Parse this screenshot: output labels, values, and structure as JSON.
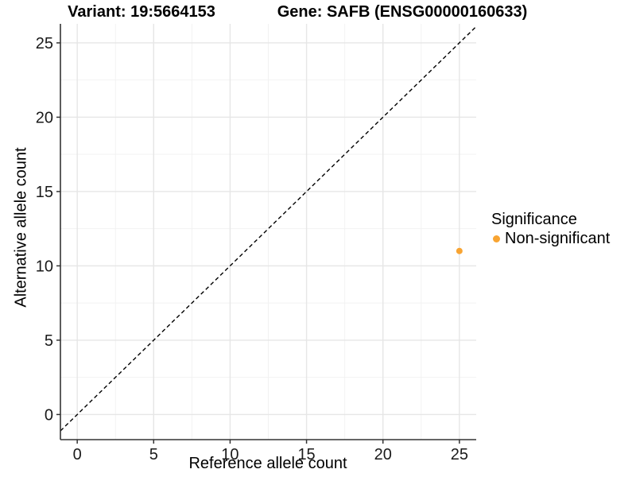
{
  "header": {
    "title_left": "Variant: 19:5664153",
    "title_right": "Gene: SAFB (ENSG00000160633)"
  },
  "chart_data": {
    "type": "scatter",
    "title": "Variant: 19:5664153   Gene: SAFB (ENSG00000160633)",
    "xlabel": "Reference allele count",
    "ylabel": "Alternative allele count",
    "xlim": [
      -1.1,
      26.1
    ],
    "ylim": [
      -1.69,
      26.28
    ],
    "xticks": [
      0,
      5,
      10,
      15,
      20,
      25
    ],
    "yticks": [
      0,
      5,
      10,
      15,
      20,
      25
    ],
    "minor_xticks": [
      2.5,
      7.5,
      12.5,
      17.5,
      22.5
    ],
    "minor_yticks": [
      2.5,
      7.5,
      12.5,
      17.5,
      22.5
    ],
    "grid": true,
    "series": [
      {
        "name": "Non-significant",
        "color": "#F8A432",
        "points": [
          {
            "x": 25,
            "y": 11
          }
        ]
      }
    ],
    "reference_line": {
      "kind": "identity",
      "slope": 1,
      "intercept": 0,
      "style": "dashed",
      "color": "#000000"
    },
    "legend": {
      "title": "Significance",
      "position": "right",
      "items": [
        {
          "label": "Non-significant",
          "color": "#F8A432"
        }
      ]
    }
  },
  "colors": {
    "background": "#ffffff",
    "grid_major": "#e6e6e6",
    "grid_minor": "#f2f2f2",
    "axis_line": "#333333",
    "tick_text": "#1a1a1a",
    "point_orange": "#F8A432"
  }
}
